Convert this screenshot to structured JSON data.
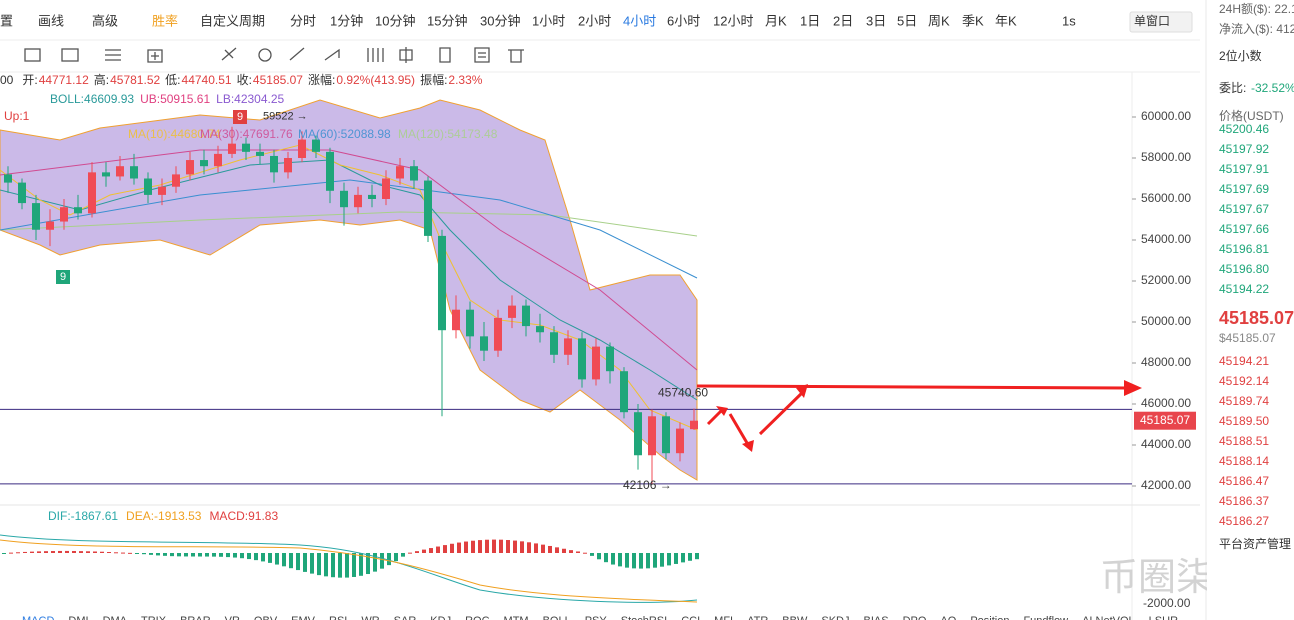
{
  "toolbar": {
    "tools": [
      "置",
      "画线",
      "高级",
      "胜率",
      "自定义周期"
    ],
    "intervals": [
      "分时",
      "1分钟",
      "10分钟",
      "15分钟",
      "30分钟",
      "1小时",
      "2小时",
      "4小时",
      "6小时",
      "12小时",
      "月K",
      "1日",
      "2日",
      "3日",
      "5日",
      "周K",
      "季K",
      "年K"
    ],
    "active": 7,
    "speed": "1s",
    "window": "单窗口"
  },
  "info": [
    {
      "label": "00",
      "value": ""
    },
    {
      "label": "开:",
      "value": "44771.12"
    },
    {
      "label": "高:",
      "value": "45781.52"
    },
    {
      "label": "低:",
      "value": "44740.51"
    },
    {
      "label": "收:",
      "value": "45185.07"
    },
    {
      "label": "涨幅:",
      "value": "0.92%(413.95)"
    },
    {
      "label": "振幅:",
      "value": "2.33%"
    }
  ],
  "boll": [
    "BOLL:46609.93",
    "UB:50915.61",
    "LB:42304.25"
  ],
  "signal": "Up:1",
  "ma": [
    "MA(10):44680.74",
    "MA(30):47691.76",
    "MA(60):52088.98",
    "MA(120):54173.48"
  ],
  "chart": {
    "ylim": [
      41317,
      62195
    ],
    "yticks": [
      {
        "value": 60000,
        "label": "60000.00"
      },
      {
        "value": 58000,
        "label": "58000.00"
      },
      {
        "value": 56000,
        "label": "56000.00"
      },
      {
        "value": 54000,
        "label": "54000.00"
      },
      {
        "value": 52000,
        "label": "52000.00"
      },
      {
        "value": 50000,
        "label": "50000.00"
      },
      {
        "value": 48000,
        "label": "48000.00"
      },
      {
        "value": 46000,
        "label": "46000.00"
      },
      {
        "value": 44000,
        "label": "44000.00"
      },
      {
        "value": 42000,
        "label": "42000.00"
      }
    ],
    "last": {
      "value": 45185.07,
      "label": "45185.07"
    },
    "high_mark": {
      "value": 59522,
      "label": "59522 →"
    },
    "level_high": {
      "value": 45740.6,
      "label": "45740.60"
    },
    "level_low": {
      "value": 42106,
      "label": "42106 →"
    },
    "badges": [
      "9",
      "9"
    ],
    "candles": [
      [
        57200,
        57600,
        56300,
        56800
      ],
      [
        56800,
        57000,
        55500,
        55800
      ],
      [
        55800,
        56200,
        54000,
        54500
      ],
      [
        54500,
        55500,
        53700,
        54900
      ],
      [
        54900,
        56000,
        54500,
        55600
      ],
      [
        55600,
        56200,
        55000,
        55300
      ],
      [
        55300,
        57800,
        55100,
        57300
      ],
      [
        57300,
        57800,
        56600,
        57100
      ],
      [
        57100,
        58100,
        56900,
        57600
      ],
      [
        57600,
        58200,
        56700,
        57000
      ],
      [
        57000,
        57300,
        55800,
        56200
      ],
      [
        56200,
        57000,
        55700,
        56600
      ],
      [
        56600,
        57600,
        56300,
        57200
      ],
      [
        57200,
        58300,
        56900,
        57900
      ],
      [
        57900,
        58400,
        57200,
        57600
      ],
      [
        57600,
        58600,
        57300,
        58200
      ],
      [
        58200,
        59522,
        58000,
        58700
      ],
      [
        58700,
        59000,
        57900,
        58300
      ],
      [
        58300,
        58700,
        57700,
        58100
      ],
      [
        58100,
        58400,
        56800,
        57300
      ],
      [
        57300,
        58300,
        57000,
        58000
      ],
      [
        58000,
        59300,
        57800,
        58900
      ],
      [
        58900,
        59100,
        58000,
        58300
      ],
      [
        58300,
        58500,
        55800,
        56400
      ],
      [
        56400,
        56800,
        54700,
        55600
      ],
      [
        55600,
        56600,
        55300,
        56200
      ],
      [
        56200,
        56700,
        55600,
        56000
      ],
      [
        56000,
        57400,
        55700,
        57000
      ],
      [
        57000,
        58000,
        56700,
        57600
      ],
      [
        57600,
        57900,
        56500,
        56900
      ],
      [
        56900,
        57100,
        53900,
        54200
      ],
      [
        54200,
        54500,
        45400,
        49600
      ],
      [
        49600,
        51300,
        49200,
        50600
      ],
      [
        50600,
        51000,
        48700,
        49300
      ],
      [
        49300,
        50000,
        48100,
        48600
      ],
      [
        48600,
        50600,
        48300,
        50200
      ],
      [
        50200,
        51300,
        49700,
        50800
      ],
      [
        50800,
        51100,
        49300,
        49800
      ],
      [
        49800,
        50400,
        49000,
        49500
      ],
      [
        49500,
        49800,
        48000,
        48400
      ],
      [
        48400,
        49600,
        47900,
        49200
      ],
      [
        49200,
        49500,
        46800,
        47200
      ],
      [
        47200,
        49200,
        46900,
        48800
      ],
      [
        48800,
        49000,
        47000,
        47600
      ],
      [
        47600,
        47800,
        45300,
        45600
      ],
      [
        45600,
        46000,
        42800,
        43500
      ],
      [
        43500,
        45740.6,
        42106,
        45400
      ],
      [
        45400,
        45600,
        43300,
        43600
      ],
      [
        43600,
        45100,
        43200,
        44800
      ],
      [
        44771.12,
        45781.52,
        44740.51,
        45185.07
      ]
    ]
  },
  "macd": {
    "items": [
      "DIF:-1867.61",
      "DEA:-1913.53",
      "MACD:91.83"
    ],
    "axis": "-2000.00"
  },
  "indicators": [
    "MACD",
    "DMI",
    "DMA",
    "TRIX",
    "BRAR",
    "VR",
    "OBV",
    "EMV",
    "RSI",
    "WR",
    "SAR",
    "KDJ",
    "ROC",
    "MTM",
    "BOLL",
    "PSY",
    "StochRSI",
    "CCI",
    "MFI",
    "ATR",
    "BBW",
    "SKDJ",
    "BIAS",
    "DPO",
    "AO",
    "Position",
    "Fundflow",
    "AI NetVOL",
    "LSUR"
  ],
  "panel": {
    "turnover": "24H额($): 22.1",
    "inflow": "净流入($): 412",
    "decimals": "2位小数",
    "ratio_label": "委比:",
    "ratio": "-32.52%",
    "price_header": "价格(USDT)",
    "asks": [
      "45200.46",
      "45197.92",
      "45197.91",
      "45197.69",
      "45197.67",
      "45197.66",
      "45196.81",
      "45196.80",
      "45194.22"
    ],
    "last": "45185.07",
    "last_usd": "$45185.07",
    "bids": [
      "45194.21",
      "45192.14",
      "45189.74",
      "45189.50",
      "45188.51",
      "45188.14",
      "45186.47",
      "45186.37",
      "45186.27"
    ],
    "footer": "平台资产管理"
  },
  "watermark": "币圈柒姐"
}
